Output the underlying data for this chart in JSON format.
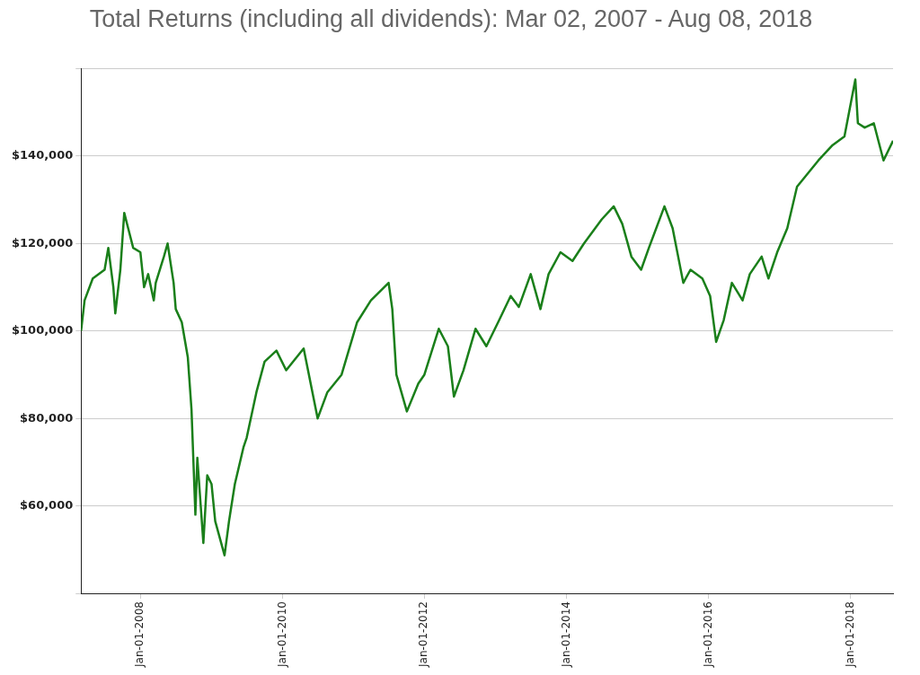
{
  "chart_data": {
    "type": "line",
    "title": "Total Returns (including all dividends): Mar 02, 2007 - Aug 08, 2018",
    "x": [
      "2007-03-02",
      "2007-03-20",
      "2007-05-01",
      "2007-07-01",
      "2007-07-20",
      "2007-08-15",
      "2007-08-25",
      "2007-09-20",
      "2007-10-10",
      "2007-11-25",
      "2008-01-01",
      "2008-01-20",
      "2008-02-10",
      "2008-03-10",
      "2008-03-20",
      "2008-05-01",
      "2008-05-20",
      "2008-06-20",
      "2008-07-01",
      "2008-08-01",
      "2008-09-01",
      "2008-09-20",
      "2008-10-10",
      "2008-10-20",
      "2008-11-20",
      "2008-12-10",
      "2009-01-01",
      "2009-01-20",
      "2009-03-09",
      "2009-04-01",
      "2009-05-01",
      "2009-06-15",
      "2009-07-01",
      "2009-08-20",
      "2009-10-01",
      "2009-12-01",
      "2010-01-20",
      "2010-04-20",
      "2010-07-01",
      "2010-08-20",
      "2010-11-01",
      "2011-01-20",
      "2011-04-01",
      "2011-07-01",
      "2011-07-20",
      "2011-08-10",
      "2011-10-03",
      "2011-12-01",
      "2012-01-01",
      "2012-03-15",
      "2012-05-01",
      "2012-06-01",
      "2012-07-20",
      "2012-09-20",
      "2012-11-15",
      "2013-01-20",
      "2013-03-20",
      "2013-05-01",
      "2013-07-01",
      "2013-08-20",
      "2013-10-01",
      "2013-12-01",
      "2014-02-01",
      "2014-04-01",
      "2014-07-01",
      "2014-09-01",
      "2014-10-15",
      "2014-12-01",
      "2015-01-20",
      "2015-03-01",
      "2015-05-20",
      "2015-07-01",
      "2015-08-25",
      "2015-10-01",
      "2015-12-01",
      "2016-01-10",
      "2016-02-10",
      "2016-03-20",
      "2016-05-01",
      "2016-06-25",
      "2016-08-01",
      "2016-10-01",
      "2016-11-05",
      "2016-12-20",
      "2017-02-10",
      "2017-04-01",
      "2017-07-20",
      "2017-10-01",
      "2017-12-01",
      "2018-01-26",
      "2018-02-08",
      "2018-03-15",
      "2018-05-01",
      "2018-06-20",
      "2018-08-08"
    ],
    "series": [
      {
        "color": "#1a7f1a",
        "values": [
          100000,
          107000,
          112000,
          114000,
          119000,
          110000,
          104000,
          114000,
          127000,
          119000,
          118000,
          110000,
          113000,
          107000,
          111000,
          117000,
          120000,
          111000,
          105000,
          102000,
          94000,
          82000,
          58000,
          71000,
          51500,
          67000,
          65000,
          56500,
          48700,
          56500,
          65000,
          73500,
          75600,
          86000,
          93000,
          95500,
          91000,
          96000,
          80000,
          86000,
          90000,
          102000,
          107000,
          111000,
          105000,
          90000,
          81600,
          88000,
          90000,
          100500,
          96500,
          85000,
          91000,
          100500,
          96500,
          102500,
          108000,
          105500,
          113000,
          105000,
          113000,
          118000,
          116000,
          120000,
          125500,
          128500,
          124500,
          117000,
          114000,
          119000,
          128500,
          123500,
          111000,
          114000,
          112000,
          108000,
          97500,
          102500,
          111000,
          107000,
          113000,
          117000,
          112000,
          118000,
          123500,
          133000,
          139000,
          142500,
          144500,
          157500,
          147500,
          146500,
          147500,
          139000,
          143500
        ]
      }
    ],
    "xlim": [
      "2007-03-02",
      "2018-08-08"
    ],
    "xticks": [
      {
        "value": "2008-01-01",
        "label": "Jan-01-2008"
      },
      {
        "value": "2010-01-01",
        "label": "Jan-01-2010"
      },
      {
        "value": "2012-01-01",
        "label": "Jan-01-2012"
      },
      {
        "value": "2014-01-01",
        "label": "Jan-01-2014"
      },
      {
        "value": "2016-01-01",
        "label": "Jan-01-2016"
      },
      {
        "value": "2018-01-01",
        "label": "Jan-01-2018"
      }
    ],
    "ylim": [
      40000,
      160000
    ],
    "yticks": [
      {
        "value": 40000,
        "label": null
      },
      {
        "value": 60000,
        "label": "$60,000"
      },
      {
        "value": 80000,
        "label": "$80,000"
      },
      {
        "value": 100000,
        "label": "$100,000"
      },
      {
        "value": 120000,
        "label": "$120,000"
      },
      {
        "value": 140000,
        "label": "$140,000"
      },
      {
        "value": 160000,
        "label": null
      }
    ],
    "grid": "y",
    "legend": false,
    "marker": "none",
    "line_style": "solid"
  }
}
